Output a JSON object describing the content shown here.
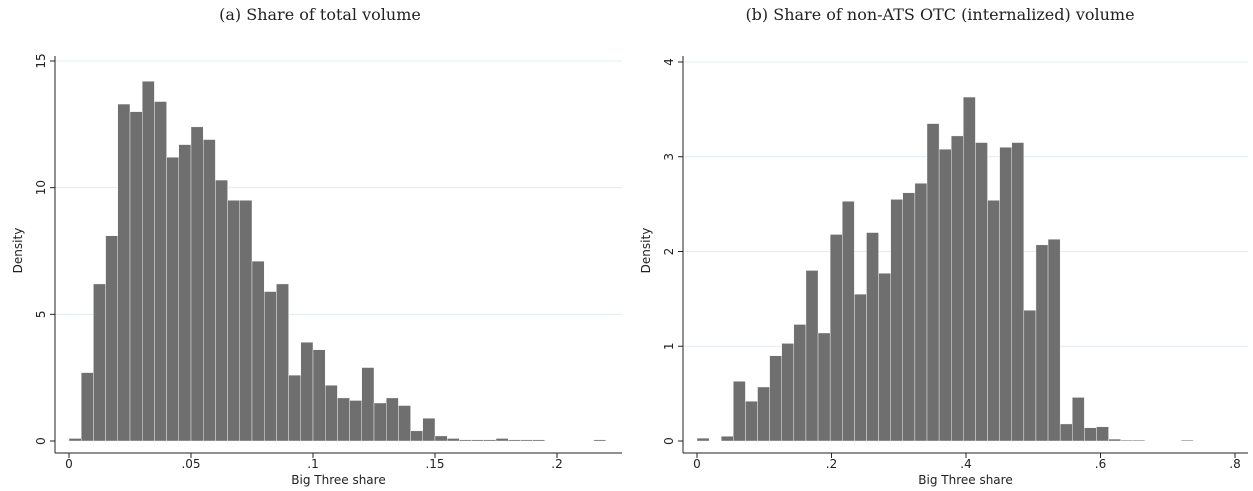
{
  "chart_data": [
    {
      "type": "histogram",
      "title": "(a) Share of total volume",
      "xlabel": "Big Three share",
      "ylabel": "Density",
      "color": "#6f6f6f",
      "grid": true,
      "bins": [
        0,
        0.005,
        0.01,
        0.015,
        0.02,
        0.025,
        0.03,
        0.035,
        0.04,
        0.045,
        0.05,
        0.055,
        0.06,
        0.065,
        0.07,
        0.075,
        0.08,
        0.085,
        0.09,
        0.095,
        0.1,
        0.105,
        0.11,
        0.115,
        0.12,
        0.125,
        0.13,
        0.135,
        0.14,
        0.145,
        0.15,
        0.155,
        0.16,
        0.165,
        0.17,
        0.175,
        0.18,
        0.185,
        0.19,
        0.195,
        0.2,
        0.205,
        0.21,
        0.215,
        0.22
      ],
      "values": [
        0.1,
        2.7,
        6.2,
        8.1,
        13.3,
        13.0,
        14.2,
        13.4,
        11.2,
        11.7,
        12.4,
        11.9,
        10.3,
        9.5,
        9.5,
        7.1,
        5.9,
        6.2,
        2.6,
        3.9,
        3.6,
        2.2,
        1.7,
        1.6,
        2.9,
        1.5,
        1.7,
        1.4,
        0.4,
        0.9,
        0.2,
        0.1,
        0.05,
        0.05,
        0.05,
        0.1,
        0.05,
        0.05,
        0.05,
        0,
        0,
        0,
        0,
        0.05
      ],
      "xlim": [
        0,
        0.2
      ],
      "ylim": [
        0,
        15
      ],
      "xticks": [
        0,
        {
          "value": 0.05,
          "label": ".05"
        },
        {
          "value": 0.1,
          "label": ".1"
        },
        {
          "value": 0.15,
          "label": ".15"
        },
        {
          "value": 0.2,
          "label": ".2"
        }
      ],
      "yticks": [
        0,
        5,
        10,
        15
      ]
    },
    {
      "type": "histogram",
      "title": "(b) Share of non-ATS OTC (internalized) volume",
      "xlabel": "Big Three share",
      "ylabel": "Density",
      "color": "#6f6f6f",
      "grid": true,
      "bins": [
        0,
        0.018,
        0.036,
        0.054,
        0.072,
        0.09,
        0.108,
        0.126,
        0.144,
        0.162,
        0.18,
        0.198,
        0.216,
        0.234,
        0.252,
        0.27,
        0.288,
        0.306,
        0.324,
        0.342,
        0.36,
        0.378,
        0.396,
        0.414,
        0.432,
        0.45,
        0.468,
        0.486,
        0.504,
        0.522,
        0.54,
        0.558,
        0.576,
        0.594,
        0.612,
        0.63,
        0.648,
        0.666,
        0.684,
        0.702,
        0.72,
        0.738
      ],
      "values": [
        0.03,
        0,
        0.05,
        0.63,
        0.42,
        0.57,
        0.9,
        1.03,
        1.23,
        1.8,
        1.14,
        2.18,
        2.53,
        1.55,
        2.2,
        1.77,
        2.55,
        2.62,
        2.72,
        3.35,
        3.08,
        3.22,
        3.63,
        3.15,
        2.54,
        3.1,
        3.15,
        1.38,
        2.07,
        2.13,
        0.18,
        0.46,
        0.14,
        0.15,
        0.02,
        0.01,
        0.01,
        0,
        0,
        0,
        0.01
      ],
      "xlim": [
        0,
        0.8
      ],
      "ylim": [
        0,
        4
      ],
      "xticks": [
        0,
        {
          "value": 0.2,
          "label": ".2"
        },
        {
          "value": 0.4,
          "label": ".4"
        },
        {
          "value": 0.6,
          "label": ".6"
        },
        {
          "value": 0.8,
          "label": ".8"
        }
      ],
      "yticks": [
        0,
        1,
        2,
        3,
        4
      ]
    }
  ]
}
